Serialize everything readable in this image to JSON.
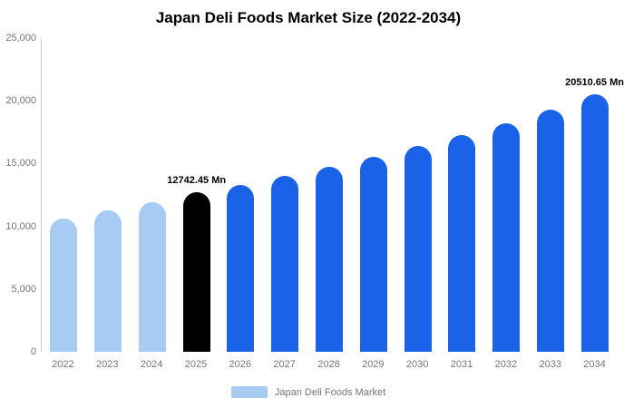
{
  "title": "Japan Deli Foods Market Size (2022-2034)",
  "legend": {
    "label": "Japan Deli Foods Market",
    "swatch_color": "#A7CBF2"
  },
  "colors": {
    "historical": "#A7CBF2",
    "base_year": "#000000",
    "forecast": "#1A63E8",
    "axis_line": "#cccccc",
    "tick_text": "#757575"
  },
  "chart_data": {
    "type": "bar",
    "title": "Japan Deli Foods Market Size (2022-2034)",
    "xlabel": "",
    "ylabel": "",
    "categories": [
      "2022",
      "2023",
      "2024",
      "2025",
      "2026",
      "2027",
      "2028",
      "2029",
      "2030",
      "2031",
      "2032",
      "2033",
      "2034"
    ],
    "values": [
      10600,
      11250,
      11900,
      12742.45,
      13300,
      14000,
      14750,
      15500,
      16400,
      17300,
      18200,
      19300,
      20510.65
    ],
    "bar_colors": [
      "#A7CBF2",
      "#A7CBF2",
      "#A7CBF2",
      "#000000",
      "#1A63E8",
      "#1A63E8",
      "#1A63E8",
      "#1A63E8",
      "#1A63E8",
      "#1A63E8",
      "#1A63E8",
      "#1A63E8",
      "#1A63E8"
    ],
    "ylim": [
      0,
      25000
    ],
    "ytick_values": [
      0,
      5000,
      10000,
      15000,
      20000,
      25000
    ],
    "ytick_labels": [
      "0",
      "5,000",
      "10,000",
      "15,000",
      "20,000",
      "25,000"
    ],
    "grid": false,
    "legend_position": "bottom",
    "legend_entries": [
      "Japan Deli Foods Market"
    ],
    "annotations": [
      {
        "category": "2025",
        "text": "12742.45 Mn"
      },
      {
        "category": "2034",
        "text": "20510.65 Mn"
      }
    ]
  }
}
